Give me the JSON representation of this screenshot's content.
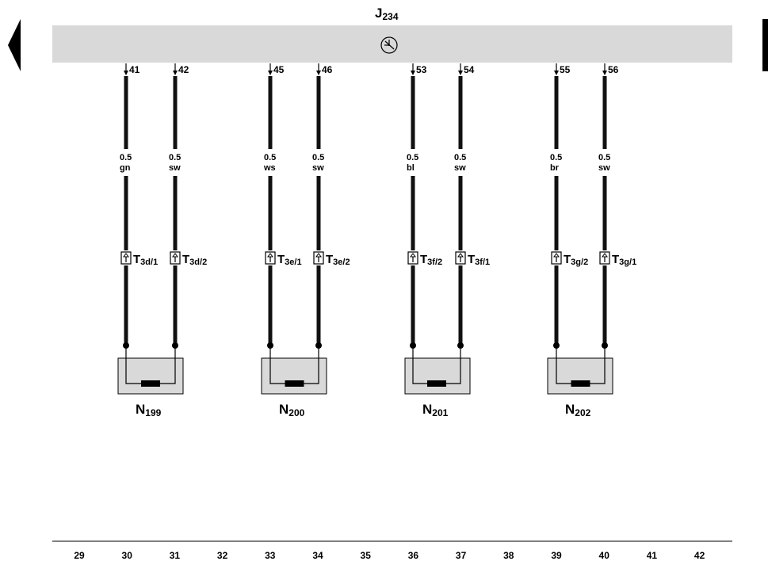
{
  "control_unit": {
    "name_main": "J",
    "name_sub": "234"
  },
  "wires": [
    {
      "pin": "41",
      "size": "0.5",
      "color": "gn",
      "conn_main": "T",
      "conn_sub": "3d/1"
    },
    {
      "pin": "42",
      "size": "0.5",
      "color": "sw",
      "conn_main": "T",
      "conn_sub": "3d/2"
    },
    {
      "pin": "45",
      "size": "0.5",
      "color": "ws",
      "conn_main": "T",
      "conn_sub": "3e/1"
    },
    {
      "pin": "46",
      "size": "0.5",
      "color": "sw",
      "conn_main": "T",
      "conn_sub": "3e/2"
    },
    {
      "pin": "53",
      "size": "0.5",
      "color": "bl",
      "conn_main": "T",
      "conn_sub": "3f/2"
    },
    {
      "pin": "54",
      "size": "0.5",
      "color": "sw",
      "conn_main": "T",
      "conn_sub": "3f/1"
    },
    {
      "pin": "55",
      "size": "0.5",
      "color": "br",
      "conn_main": "T",
      "conn_sub": "3g/2"
    },
    {
      "pin": "56",
      "size": "0.5",
      "color": "sw",
      "conn_main": "T",
      "conn_sub": "3g/1"
    }
  ],
  "components": [
    {
      "main": "N",
      "sub": "199"
    },
    {
      "main": "N",
      "sub": "200"
    },
    {
      "main": "N",
      "sub": "201"
    },
    {
      "main": "N",
      "sub": "202"
    }
  ],
  "track_numbers": [
    "29",
    "30",
    "31",
    "32",
    "33",
    "34",
    "35",
    "36",
    "37",
    "38",
    "39",
    "40",
    "41",
    "42"
  ],
  "icons": {
    "nav_prev": "triangle-left-icon",
    "nav_next": "bar-right-icon",
    "control_unit_symbol": "airbag-unit-icon"
  },
  "colors": {
    "bar_fill": "#d9d9d9",
    "component_fill": "#d9d9d9",
    "wire": "#111111"
  }
}
